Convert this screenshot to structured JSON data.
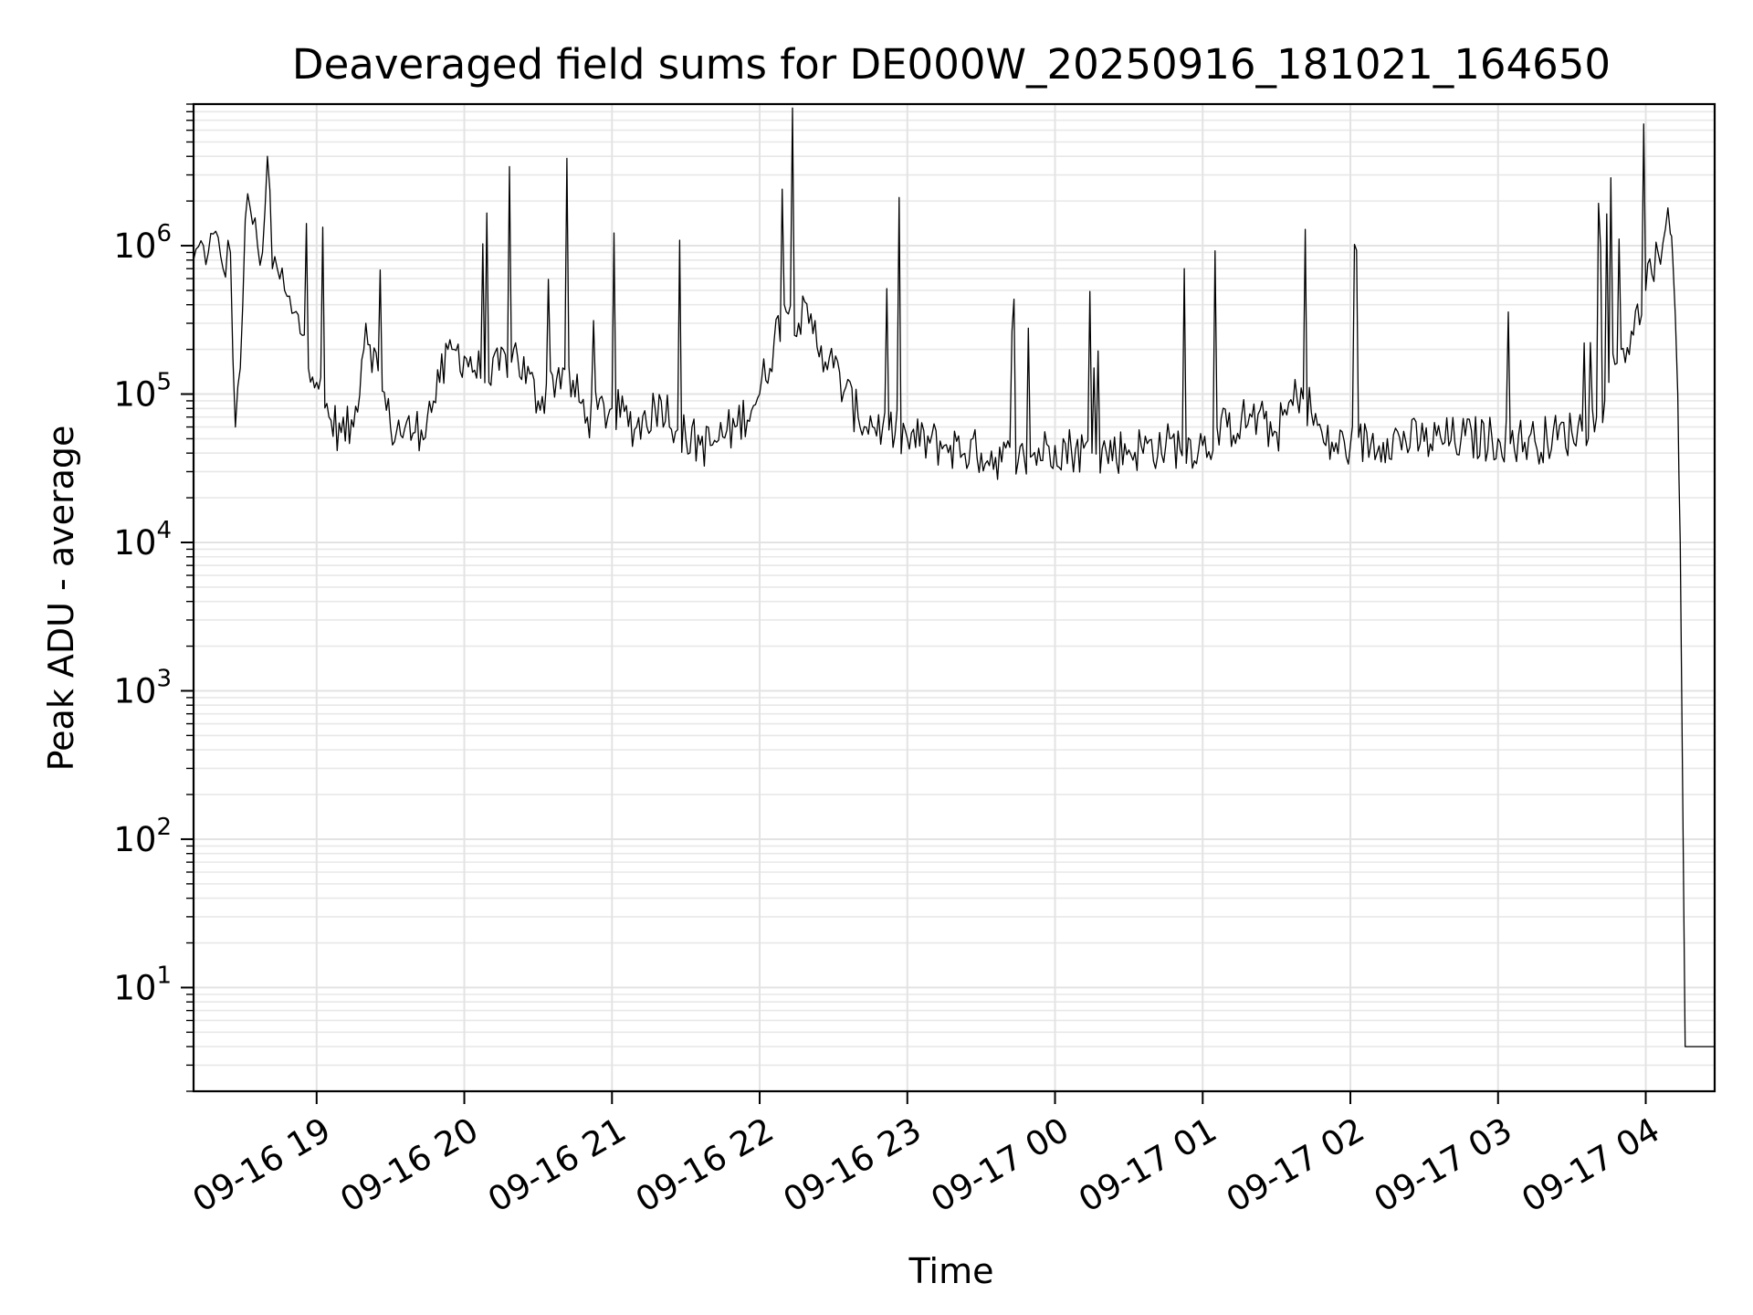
{
  "chart_data": {
    "type": "line",
    "title": "Deaveraged field sums for DE000W_20250916_181021_164650",
    "xlabel": "Time",
    "ylabel": "Peak ADU - average",
    "yscale": "log",
    "ylim": [
      2,
      9000000
    ],
    "xlim": [
      "09-16 18:10",
      "09-17 04:28"
    ],
    "grid": true,
    "line_color": "#000000",
    "x_ticks": [
      "09-16 19",
      "09-16 20",
      "09-16 21",
      "09-16 22",
      "09-16 23",
      "09-17 00",
      "09-17 01",
      "09-17 02",
      "09-17 03",
      "09-17 04"
    ],
    "y_ticks": [
      {
        "base": "10",
        "exp": "1",
        "value": 10
      },
      {
        "base": "10",
        "exp": "2",
        "value": 100
      },
      {
        "base": "10",
        "exp": "3",
        "value": 1000
      },
      {
        "base": "10",
        "exp": "4",
        "value": 10000
      },
      {
        "base": "10",
        "exp": "5",
        "value": 100000
      },
      {
        "base": "10",
        "exp": "6",
        "value": 1000000
      }
    ],
    "series": [
      {
        "x": [
          "09-16 18:10",
          "09-16 18:14",
          "09-16 18:16",
          "09-16 18:18",
          "09-16 18:22",
          "09-16 18:25",
          "09-16 18:27",
          "09-16 18:29",
          "09-16 18:31",
          "09-16 18:33",
          "09-16 18:36",
          "09-16 18:38",
          "09-16 18:40",
          "09-16 18:42",
          "09-16 18:44",
          "09-16 18:47",
          "09-16 18:50",
          "09-16 18:55",
          "09-16 19:00",
          "09-16 19:05",
          "09-16 19:10",
          "09-16 19:15",
          "09-16 19:20",
          "09-16 19:30",
          "09-16 19:40",
          "09-16 19:45",
          "09-16 19:50",
          "09-16 19:55",
          "09-16 20:00",
          "09-16 20:10",
          "09-16 20:20",
          "09-16 20:30",
          "09-16 20:40",
          "09-16 20:50",
          "09-16 21:00",
          "09-16 21:10",
          "09-16 21:20",
          "09-16 21:30",
          "09-16 21:40",
          "09-16 21:50",
          "09-16 22:00",
          "09-16 22:10",
          "09-16 22:20",
          "09-16 22:30",
          "09-16 22:40",
          "09-16 22:50",
          "09-16 23:00",
          "09-16 23:15",
          "09-16 23:30",
          "09-16 23:45",
          "09-17 00:00",
          "09-17 00:15",
          "09-17 00:30",
          "09-17 00:45",
          "09-17 01:00",
          "09-17 01:10",
          "09-17 01:20",
          "09-17 01:30",
          "09-17 01:40",
          "09-17 01:50",
          "09-17 02:00",
          "09-17 02:15",
          "09-17 02:30",
          "09-17 02:45",
          "09-17 03:00",
          "09-17 03:15",
          "09-17 03:30",
          "09-17 03:40",
          "09-17 03:45",
          "09-17 03:50",
          "09-17 03:55",
          "09-17 04:00",
          "09-17 04:05",
          "09-17 04:08",
          "09-17 04:10",
          "09-17 04:11",
          "09-17 04:13",
          "09-17 04:14",
          "09-17 04:16",
          "09-17 04:20",
          "09-17 04:28"
        ],
        "y": [
          800000,
          1000000,
          900000,
          1200000,
          700000,
          900000,
          60000,
          150000,
          1500000,
          1800000,
          1000000,
          900000,
          4000000,
          700000,
          700000,
          500000,
          350000,
          250000,
          120000,
          70000,
          55000,
          60000,
          300000,
          60000,
          55000,
          70000,
          120000,
          200000,
          180000,
          120000,
          200000,
          90000,
          150000,
          70000,
          80000,
          60000,
          90000,
          50000,
          45000,
          60000,
          100000,
          400000,
          300000,
          150000,
          70000,
          60000,
          50000,
          45000,
          40000,
          35000,
          45000,
          40000,
          42000,
          45000,
          45000,
          60000,
          70000,
          55000,
          110000,
          45000,
          45000,
          50000,
          48000,
          50000,
          50000,
          48000,
          55000,
          70000,
          120000,
          200000,
          250000,
          500000,
          900000,
          1300000,
          1200000,
          800000,
          100000,
          10000,
          4,
          4,
          4
        ]
      }
    ]
  }
}
